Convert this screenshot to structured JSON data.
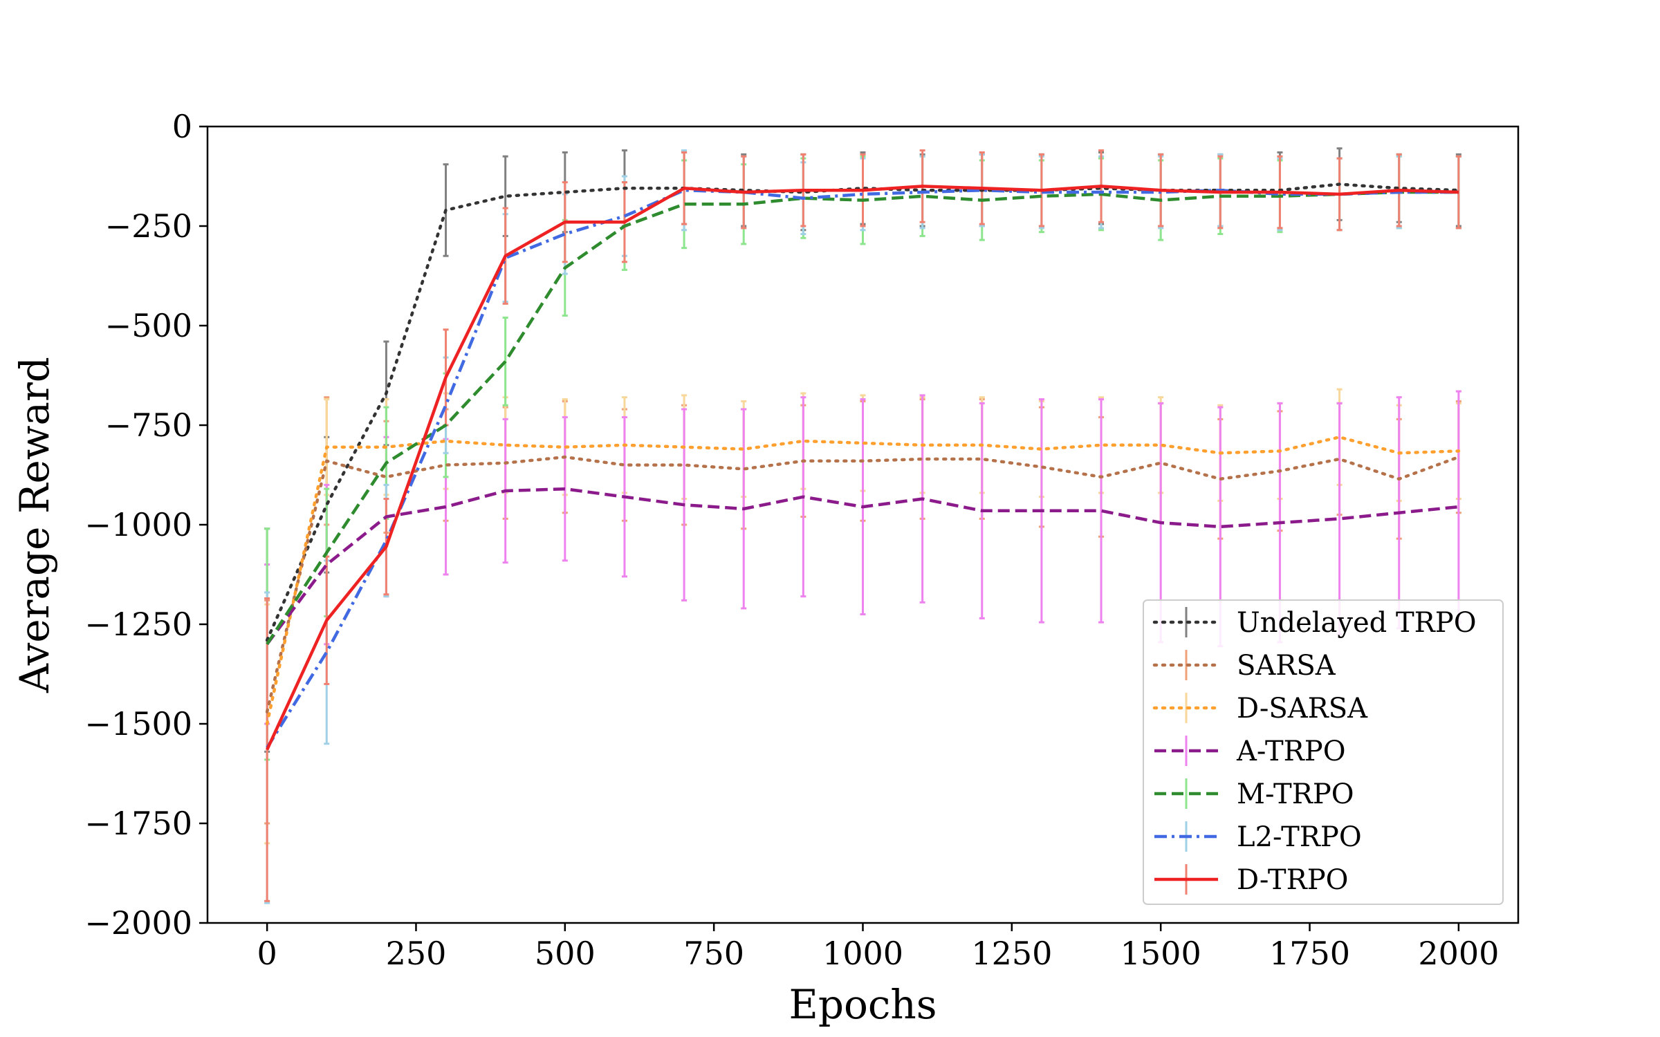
{
  "chart_data": {
    "type": "line",
    "xlabel": "Epochs",
    "ylabel": "Average Reward",
    "xlim": [
      -100,
      2100
    ],
    "ylim": [
      -2000,
      0
    ],
    "xticks": [
      "0",
      "250",
      "500",
      "750",
      "1000",
      "1250",
      "1500",
      "1750",
      "2000"
    ],
    "yticks": [
      "0",
      "−250",
      "−500",
      "−750",
      "−1000",
      "−1250",
      "−1500",
      "−1750",
      "−2000"
    ],
    "legend_position": "lower-right",
    "grid": false,
    "x": [
      0,
      100,
      200,
      300,
      400,
      500,
      600,
      700,
      800,
      900,
      1000,
      1100,
      1200,
      1300,
      1400,
      1500,
      1600,
      1700,
      1800,
      1900,
      2000
    ],
    "series": [
      {
        "name": "Undelayed TRPO",
        "color": "#333333",
        "err_color": "#808080",
        "dash": "dotted",
        "values": [
          -1290,
          -950,
          -670,
          -210,
          -175,
          -165,
          -155,
          -155,
          -160,
          -165,
          -155,
          -160,
          -160,
          -160,
          -155,
          -160,
          -160,
          -160,
          -145,
          -155,
          -160
        ],
        "errors": [
          280,
          170,
          130,
          115,
          100,
          100,
          95,
          90,
          90,
          95,
          90,
          90,
          90,
          90,
          90,
          90,
          90,
          95,
          90,
          85,
          90
        ]
      },
      {
        "name": "SARSA",
        "color": "#b5724a",
        "err_color": "#f0a078",
        "dash": "dotted",
        "values": [
          -1470,
          -840,
          -880,
          -850,
          -845,
          -830,
          -850,
          -850,
          -860,
          -840,
          -840,
          -835,
          -835,
          -855,
          -880,
          -845,
          -885,
          -865,
          -835,
          -885,
          -830
        ],
        "errors": [
          280,
          160,
          140,
          140,
          140,
          140,
          140,
          150,
          150,
          140,
          150,
          150,
          150,
          150,
          150,
          150,
          150,
          150,
          140,
          150,
          140
        ]
      },
      {
        "name": "D-SARSA",
        "color": "#ff9f2e",
        "err_color": "#f7d79a",
        "dash": "dotted",
        "values": [
          -1500,
          -805,
          -805,
          -790,
          -800,
          -805,
          -800,
          -805,
          -810,
          -790,
          -795,
          -800,
          -800,
          -810,
          -800,
          -800,
          -820,
          -815,
          -780,
          -820,
          -815
        ],
        "errors": [
          300,
          120,
          120,
          120,
          120,
          120,
          120,
          130,
          120,
          120,
          120,
          120,
          120,
          120,
          120,
          120,
          120,
          120,
          120,
          120,
          120
        ]
      },
      {
        "name": "A-TRPO",
        "color": "#8b1a8b",
        "err_color": "#ee82ee",
        "dash": "dashed",
        "values": [
          -1300,
          -1100,
          -980,
          -955,
          -915,
          -910,
          -930,
          -950,
          -960,
          -930,
          -955,
          -935,
          -965,
          -965,
          -965,
          -995,
          -1005,
          -995,
          -985,
          -970,
          -955
        ],
        "errors": [
          200,
          200,
          200,
          170,
          180,
          180,
          200,
          240,
          250,
          250,
          270,
          260,
          270,
          280,
          280,
          300,
          300,
          300,
          290,
          290,
          290
        ]
      },
      {
        "name": "M-TRPO",
        "color": "#2e8b2e",
        "err_color": "#8de58d",
        "dash": "dashed",
        "values": [
          -1300,
          -1070,
          -845,
          -750,
          -590,
          -355,
          -250,
          -195,
          -195,
          -180,
          -185,
          -175,
          -185,
          -175,
          -170,
          -185,
          -175,
          -175,
          -170,
          -165,
          -165
        ],
        "errors": [
          290,
          160,
          140,
          130,
          110,
          120,
          110,
          110,
          100,
          100,
          110,
          100,
          100,
          90,
          90,
          100,
          95,
          90,
          90,
          90,
          90
        ]
      },
      {
        "name": "L2-TRPO",
        "color": "#4169e1",
        "err_color": "#9fd0e6",
        "dash": "dashdot",
        "values": [
          -1560,
          -1320,
          -1040,
          -700,
          -330,
          -270,
          -225,
          -160,
          -165,
          -180,
          -170,
          -165,
          -160,
          -165,
          -165,
          -165,
          -160,
          -170,
          -170,
          -165,
          -165
        ],
        "errors": [
          390,
          230,
          140,
          120,
          110,
          100,
          100,
          100,
          90,
          90,
          90,
          90,
          90,
          90,
          90,
          90,
          90,
          90,
          90,
          90,
          90
        ]
      },
      {
        "name": "D-TRPO",
        "color": "#ee2222",
        "err_color": "#f08070",
        "dash": "solid",
        "values": [
          -1565,
          -1240,
          -1055,
          -630,
          -325,
          -240,
          -240,
          -155,
          -165,
          -160,
          -160,
          -150,
          -155,
          -160,
          -150,
          -160,
          -165,
          -165,
          -170,
          -160,
          -165
        ],
        "errors": [
          380,
          160,
          120,
          120,
          120,
          100,
          100,
          90,
          90,
          90,
          90,
          90,
          90,
          90,
          90,
          90,
          90,
          90,
          90,
          90,
          90
        ]
      }
    ]
  }
}
